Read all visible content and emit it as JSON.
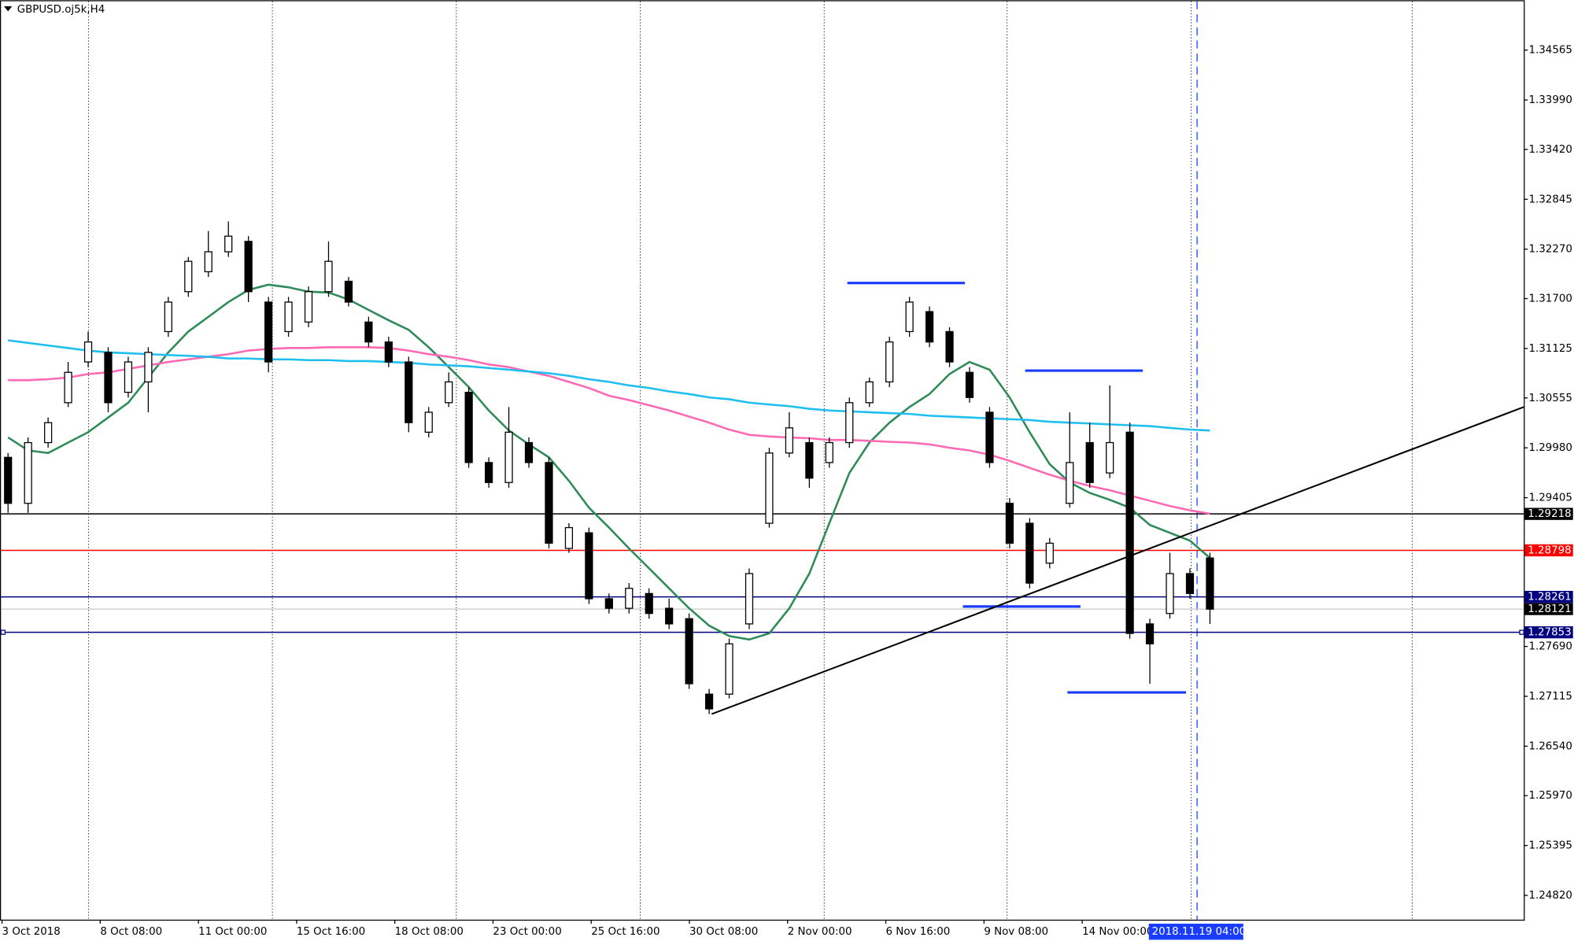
{
  "chart_data": {
    "type": "candlestick",
    "title": "GBPUSD.oj5k,H4",
    "open": [
      1.2987,
      1.2934,
      1.3004,
      1.305,
      1.3097,
      1.3108,
      1.3062,
      1.3074,
      1.3132,
      1.3178,
      1.3201,
      1.3224,
      1.3236,
      1.3166,
      1.3132,
      1.3143,
      1.3178,
      1.319,
      1.3143,
      1.312,
      1.3097,
      1.3016,
      1.305,
      1.3062,
      1.2981,
      1.2958,
      1.3004,
      1.2981,
      1.2882,
      1.29,
      1.2824,
      1.2813,
      1.283,
      1.2813,
      1.2801,
      1.2714,
      1.2714,
      1.2795,
      1.2911,
      1.2992,
      1.3004,
      1.2981,
      1.3004,
      1.305,
      1.3074,
      1.3132,
      1.3155,
      1.3132,
      1.3085,
      1.3039,
      1.2934,
      1.2911,
      1.2865,
      1.2934,
      1.3004,
      1.2969,
      1.3016,
      1.2795,
      1.2807,
      1.2853,
      1.2871
    ],
    "high": [
      1.2992,
      1.301,
      1.3033,
      1.3097,
      1.3132,
      1.3114,
      1.3103,
      1.3114,
      1.3172,
      1.3218,
      1.3248,
      1.3259,
      1.3242,
      1.3172,
      1.3172,
      1.3184,
      1.3236,
      1.3195,
      1.3149,
      1.3126,
      1.3103,
      1.3045,
      1.3085,
      1.3068,
      1.2987,
      1.3045,
      1.301,
      1.2987,
      1.2911,
      1.2906,
      1.283,
      1.2842,
      1.2836,
      1.2824,
      1.2807,
      1.272,
      1.2778,
      1.2859,
      1.2998,
      1.3039,
      1.301,
      1.301,
      1.3056,
      1.3079,
      1.3126,
      1.3172,
      1.3161,
      1.3137,
      1.3091,
      1.3045,
      1.294,
      1.2917,
      1.2894,
      1.3039,
      1.3027,
      1.307,
      1.3027,
      1.2801,
      1.2877,
      1.2859,
      1.2877
    ],
    "low": [
      1.2923,
      1.2923,
      1.2998,
      1.3045,
      1.3091,
      1.3039,
      1.3056,
      1.3039,
      1.3126,
      1.3172,
      1.3195,
      1.3218,
      1.3166,
      1.3085,
      1.3126,
      1.3137,
      1.3172,
      1.3161,
      1.3114,
      1.3091,
      1.3016,
      1.301,
      1.3045,
      1.2975,
      1.2952,
      1.2952,
      1.2975,
      1.2882,
      1.2877,
      1.2818,
      1.2807,
      1.2807,
      1.2801,
      1.2789,
      1.272,
      1.2691,
      1.2709,
      1.2789,
      1.2906,
      1.2987,
      1.2952,
      1.2975,
      1.2998,
      1.3045,
      1.3068,
      1.3126,
      1.3114,
      1.3091,
      1.305,
      1.2975,
      1.2882,
      1.2836,
      1.2859,
      1.2929,
      1.2952,
      1.2963,
      1.2778,
      1.2726,
      1.2801,
      1.2824,
      1.2795
    ],
    "close": [
      1.2934,
      1.3004,
      1.3027,
      1.3085,
      1.312,
      1.305,
      1.3097,
      1.3108,
      1.3166,
      1.3213,
      1.3224,
      1.3242,
      1.3178,
      1.3097,
      1.3166,
      1.3178,
      1.3213,
      1.3166,
      1.312,
      1.3097,
      1.3027,
      1.3039,
      1.3074,
      1.2981,
      1.2958,
      1.3016,
      1.2981,
      1.2888,
      1.2906,
      1.2824,
      1.2813,
      1.2836,
      1.2807,
      1.2795,
      1.2726,
      1.2697,
      1.2772,
      1.2853,
      1.2992,
      1.3021,
      1.2963,
      1.3004,
      1.305,
      1.3074,
      1.312,
      1.3166,
      1.312,
      1.3097,
      1.3056,
      1.2981,
      1.2888,
      1.2842,
      1.2888,
      1.2981,
      1.2958,
      1.3004,
      1.2784,
      1.2772,
      1.2853,
      1.283,
      1.2812
    ],
    "series": [
      {
        "color": "#2e8b57",
        "values": [
          1.301,
          1.2995,
          1.2992,
          1.3004,
          1.3016,
          1.3033,
          1.305,
          1.3079,
          1.3108,
          1.3132,
          1.3149,
          1.3166,
          1.318,
          1.3186,
          1.3183,
          1.3178,
          1.3177,
          1.3169,
          1.3157,
          1.3145,
          1.3134,
          1.3114,
          1.3091,
          1.3068,
          1.3041,
          1.3018,
          1.3002,
          1.2987,
          1.296,
          1.2929,
          1.2906,
          1.2882,
          1.2859,
          1.2836,
          1.2813,
          1.2793,
          1.2781,
          1.2777,
          1.2784,
          1.2813,
          1.2853,
          1.2911,
          1.2969,
          1.3004,
          1.3027,
          1.3045,
          1.306,
          1.3083,
          1.3097,
          1.3088,
          1.3056,
          1.3016,
          1.2979,
          1.2958,
          1.2946,
          1.2938,
          1.2929,
          1.2909,
          1.29,
          1.2891,
          1.2871
        ]
      },
      {
        "color": "#ff69b4",
        "values": [
          1.3076,
          1.3076,
          1.3077,
          1.3079,
          1.3083,
          1.3085,
          1.3089,
          1.3093,
          1.3097,
          1.31,
          1.3103,
          1.3106,
          1.311,
          1.3112,
          1.3113,
          1.3113,
          1.3114,
          1.3114,
          1.3114,
          1.3113,
          1.311,
          1.3106,
          1.3103,
          1.3099,
          1.3094,
          1.3091,
          1.3086,
          1.3081,
          1.3074,
          1.3067,
          1.3058,
          1.3053,
          1.3047,
          1.3041,
          1.3034,
          1.3027,
          1.3019,
          1.3013,
          1.3011,
          1.301,
          1.3009,
          1.3007,
          1.3007,
          1.3006,
          1.3005,
          1.3004,
          1.3002,
          1.2998,
          1.2995,
          1.299,
          1.2983,
          1.2975,
          1.2967,
          1.296,
          1.2954,
          1.2949,
          1.2943,
          1.2937,
          1.2931,
          1.2926,
          1.2922
        ]
      },
      {
        "color": "#1ebfef",
        "values": [
          1.3122,
          1.3119,
          1.3116,
          1.3113,
          1.311,
          1.3108,
          1.3107,
          1.3106,
          1.3105,
          1.3104,
          1.3103,
          1.3101,
          1.3101,
          1.31,
          1.31,
          1.3099,
          1.3099,
          1.3098,
          1.3098,
          1.3097,
          1.3096,
          1.3094,
          1.3093,
          1.3092,
          1.309,
          1.3088,
          1.3086,
          1.3084,
          1.3081,
          1.3077,
          1.3074,
          1.307,
          1.3067,
          1.3063,
          1.306,
          1.3056,
          1.3054,
          1.305,
          1.3048,
          1.3046,
          1.3043,
          1.3041,
          1.304,
          1.3039,
          1.3038,
          1.3037,
          1.3035,
          1.3034,
          1.3033,
          1.3032,
          1.3031,
          1.303,
          1.3028,
          1.3027,
          1.3026,
          1.3025,
          1.3024,
          1.3023,
          1.3021,
          1.3019,
          1.3018
        ]
      }
    ],
    "ylim": [
      1.2454,
      1.3514
    ],
    "yticks": [
      1.34565,
      {
        "value": 1.3399,
        "label": "1.33990"
      },
      {
        "value": 1.3342,
        "label": "1.33420"
      },
      1.32845,
      {
        "value": 1.3227,
        "label": "1.32270"
      },
      {
        "value": 1.317,
        "label": "1.31700"
      },
      1.31125,
      1.30555,
      {
        "value": 1.2998,
        "label": "1.29980"
      },
      1.29405,
      {
        "value": 1.2769,
        "label": "1.27690"
      },
      1.27115,
      {
        "value": 1.2654,
        "label": "1.26540"
      },
      {
        "value": 1.2597,
        "label": "1.25970"
      },
      1.25395,
      {
        "value": 1.2482,
        "label": "1.24820"
      }
    ],
    "x_labels": [
      "3 Oct 2018",
      "8 Oct 08:00",
      "11 Oct 00:00",
      "15 Oct 16:00",
      "18 Oct 08:00",
      "23 Oct 00:00",
      "25 Oct 16:00",
      "30 Oct 08:00",
      "2 Nov 00:00",
      "6 Nov 16:00",
      "9 Nov 08:00",
      "14 Nov 00:00"
    ],
    "cursor_label": "2018.11.19 04:00",
    "price_lines": [
      {
        "value": 1.29218,
        "color": "#000000"
      },
      {
        "value": 1.28798,
        "color": "#ff0000"
      },
      {
        "value": 1.28261,
        "color": "#000080"
      },
      {
        "value": 1.28121,
        "color": "#000000"
      },
      {
        "value": 1.27853,
        "color": "#000080"
      }
    ],
    "levels": [
      1.3188,
      1.3087,
      1.2815,
      1.2716
    ],
    "trendline": [
      1.2691,
      1.3045
    ]
  }
}
